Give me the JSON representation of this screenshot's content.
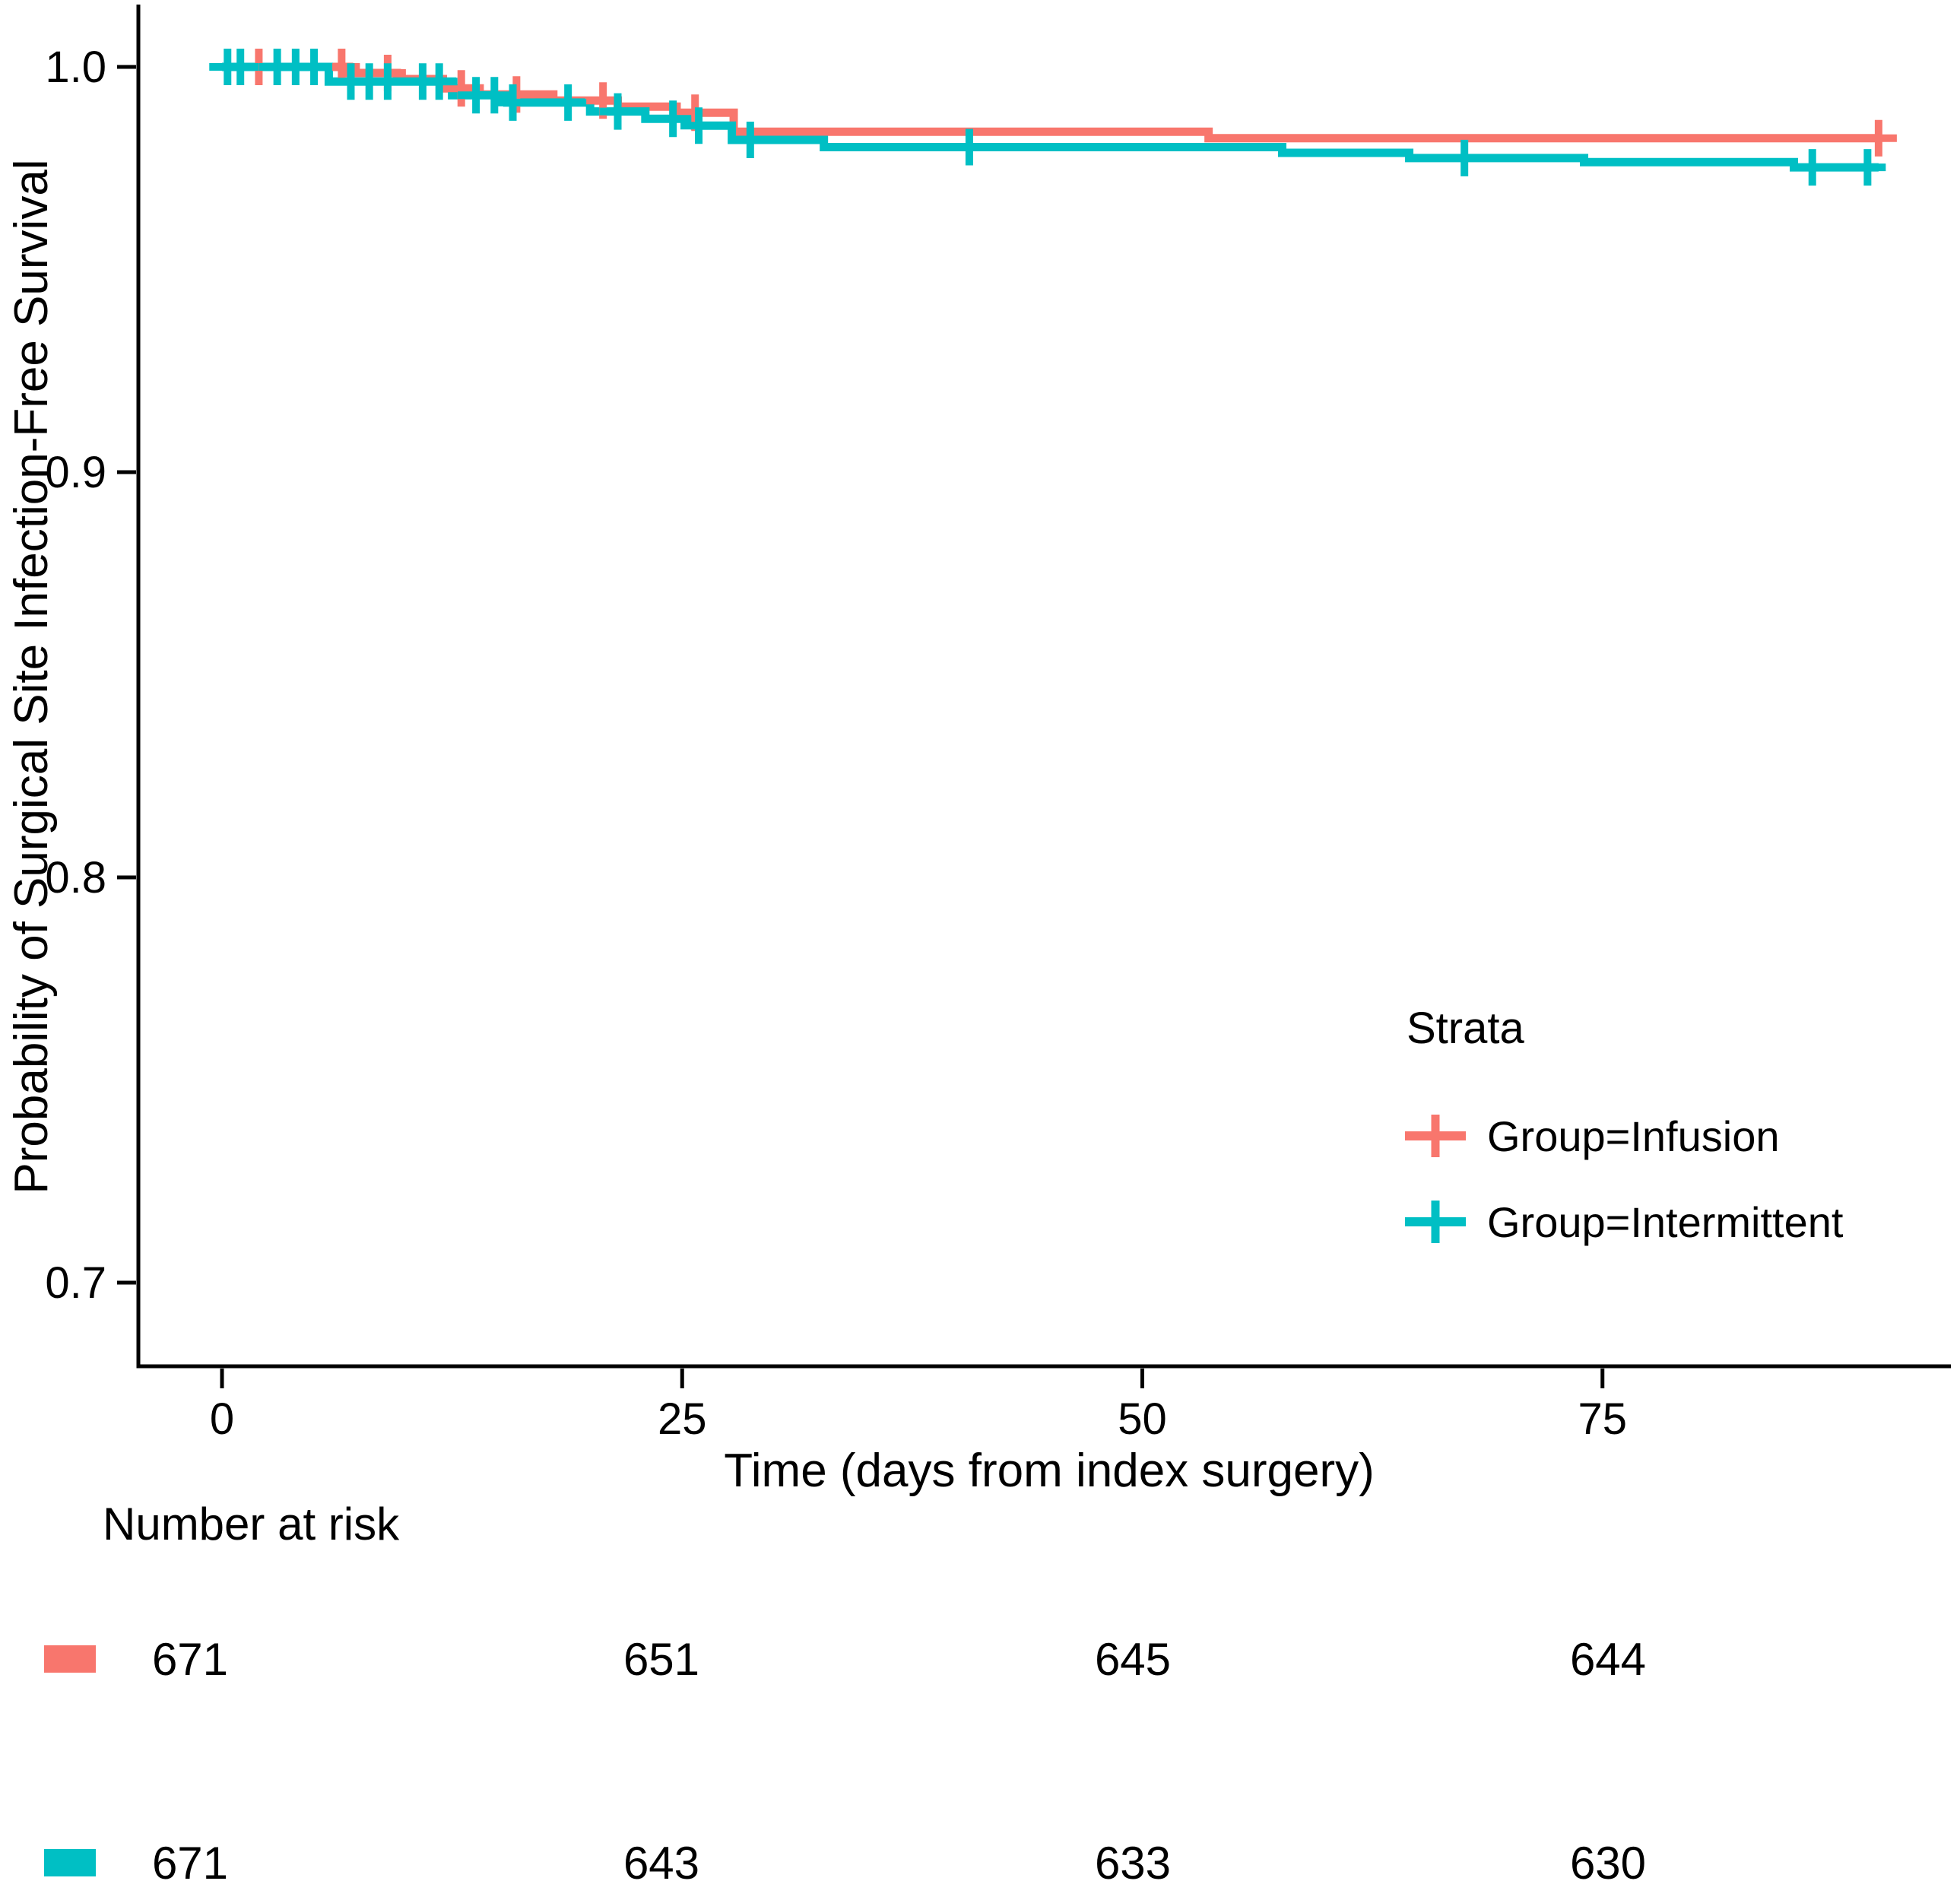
{
  "chart_data": {
    "type": "line",
    "subtype": "kaplan-meier-step",
    "title": "",
    "xlabel": "Time (days from index surgery)",
    "ylabel": "Probability of Surgical Site Infection-Free Survival",
    "xlim": [
      0,
      93
    ],
    "ylim": [
      0.68,
      1.01
    ],
    "grid": false,
    "x_ticks": [
      {
        "label": "0",
        "value": 0
      },
      {
        "label": "25",
        "value": 25
      },
      {
        "label": "50",
        "value": 50
      },
      {
        "label": "75",
        "value": 75
      }
    ],
    "y_ticks": [
      {
        "label": "1.0",
        "value": 1.0
      },
      {
        "label": "0.9",
        "value": 0.9
      },
      {
        "label": "0.8",
        "value": 0.8
      },
      {
        "label": "0.7",
        "value": 0.7
      }
    ],
    "legend": {
      "title": "Strata",
      "position": "right-middle"
    },
    "series": [
      {
        "name": "Group=Infusion",
        "color": "#F8766D",
        "steps": [
          [
            0,
            1.0
          ],
          [
            6.9,
            0.9985
          ],
          [
            9.5,
            0.997
          ],
          [
            12,
            0.9947
          ],
          [
            14,
            0.9932
          ],
          [
            18,
            0.9917
          ],
          [
            21.5,
            0.9902
          ],
          [
            24.7,
            0.9887
          ],
          [
            27.8,
            0.984
          ],
          [
            53.6,
            0.9824
          ],
          [
            90,
            0.9824
          ]
        ],
        "censor_days": [
          2,
          6.5,
          9,
          13,
          16,
          20.7,
          25.7,
          90
        ]
      },
      {
        "name": "Group=Intermittent",
        "color": "#00BFC4",
        "steps": [
          [
            0,
            1.0
          ],
          [
            5.8,
            0.9964
          ],
          [
            12.5,
            0.993
          ],
          [
            15.5,
            0.9912
          ],
          [
            20,
            0.989
          ],
          [
            23,
            0.9872
          ],
          [
            25.7,
            0.9855
          ],
          [
            27.7,
            0.982
          ],
          [
            32.7,
            0.9802
          ],
          [
            57.6,
            0.9788
          ],
          [
            64.5,
            0.9775
          ],
          [
            74,
            0.9765
          ],
          [
            85.4,
            0.9752
          ],
          [
            90,
            0.9752
          ]
        ],
        "censor_days": [
          0.3,
          1,
          3,
          4,
          5,
          7,
          8,
          9,
          10.9,
          11.8,
          13.8,
          14.8,
          15.8,
          18.8,
          21.5,
          24.5,
          25.9,
          28.7,
          40.6,
          67.5,
          86.4,
          89.4
        ]
      }
    ]
  },
  "risk_table": {
    "heading": "Number at risk",
    "time_points": [
      0,
      25,
      50,
      75
    ],
    "rows": [
      {
        "group": "Group=Infusion",
        "color": "#F8766D",
        "counts": [
          "671",
          "651",
          "645",
          "644"
        ]
      },
      {
        "group": "Group=Intermittent",
        "color": "#00BFC4",
        "counts": [
          "671",
          "643",
          "633",
          "630"
        ]
      }
    ]
  }
}
